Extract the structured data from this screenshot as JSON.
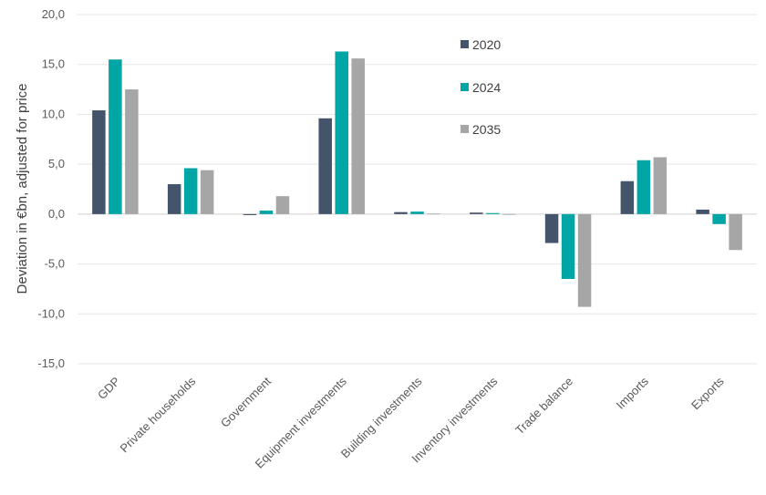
{
  "chart_data": {
    "type": "bar",
    "title": "",
    "xlabel": "",
    "ylabel": "Deviation in €bn, adjusted for price",
    "ylim": [
      -15,
      20
    ],
    "yticks": [
      20,
      15,
      10,
      5,
      0,
      -5,
      -10,
      -15
    ],
    "ytick_labels": [
      "20,0",
      "15,0",
      "10,0",
      "5,0",
      "0,0",
      "-5,0",
      "-10,0",
      "-15,0"
    ],
    "grid": true,
    "legend_position": "top-right",
    "categories": [
      "GDP",
      "Private households",
      "Government",
      "Equipment investments",
      "Building investments",
      "Inventory investments",
      "Trade balance",
      "Imports",
      "Exports"
    ],
    "series": [
      {
        "name": "2020",
        "color": "#44546a",
        "values": [
          10.4,
          3.0,
          -0.1,
          9.6,
          0.2,
          0.15,
          -2.9,
          3.3,
          0.45
        ]
      },
      {
        "name": "2024",
        "color": "#00a5a5",
        "values": [
          15.5,
          4.6,
          0.35,
          16.3,
          0.25,
          0.1,
          -6.5,
          5.4,
          -1.0
        ]
      },
      {
        "name": "2035",
        "color": "#a6a6a6",
        "values": [
          12.5,
          4.4,
          1.8,
          15.6,
          0.05,
          -0.05,
          -9.3,
          5.7,
          -3.6
        ]
      }
    ]
  }
}
